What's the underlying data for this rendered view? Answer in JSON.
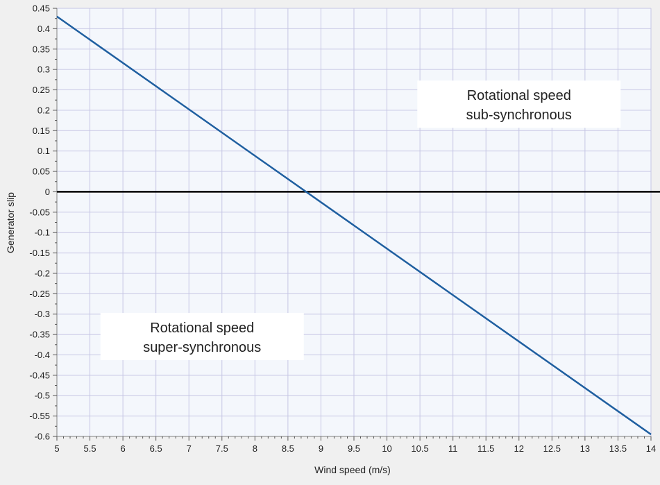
{
  "chart_data": {
    "type": "line",
    "title": "",
    "xlabel": "Wind speed (m/s)",
    "ylabel": "Generator slip",
    "xlim": [
      5,
      14
    ],
    "ylim": [
      -0.6,
      0.45
    ],
    "x_ticks": [
      "5",
      "5.5",
      "6",
      "6.5",
      "7",
      "7.5",
      "8",
      "8.5",
      "9",
      "9.5",
      "10",
      "10.5",
      "11",
      "11.5",
      "12",
      "12.5",
      "13",
      "13.5",
      "14"
    ],
    "y_ticks": [
      "0.45",
      "0.4",
      "0.35",
      "0.3",
      "0.25",
      "0.2",
      "0.15",
      "0.1",
      "0.05",
      "0",
      "-0.05",
      "-0.1",
      "-0.15",
      "-0.2",
      "-0.25",
      "-0.3",
      "-0.35",
      "-0.4",
      "-0.45",
      "-0.5",
      "-0.55",
      "-0.6"
    ],
    "grid": true,
    "series": [
      {
        "x": [
          5,
          14
        ],
        "y": [
          0.43,
          -0.595
        ]
      }
    ],
    "reference_line": {
      "y": 0
    },
    "annotations": [
      {
        "lines": [
          "Rotational speed",
          "sub-synchronous"
        ],
        "x": 12,
        "y": 0.215
      },
      {
        "lines": [
          "Rotational speed",
          "super-synchronous"
        ],
        "x": 7.2,
        "y": -0.355
      }
    ],
    "colors": {
      "series": "#1f5fa0",
      "reference_line": "#000000",
      "grid": "#c6c6e4",
      "plot_background": "#f4f7fc",
      "page_background": "#f0f0f0",
      "annotation_box": "#ffffff"
    }
  }
}
